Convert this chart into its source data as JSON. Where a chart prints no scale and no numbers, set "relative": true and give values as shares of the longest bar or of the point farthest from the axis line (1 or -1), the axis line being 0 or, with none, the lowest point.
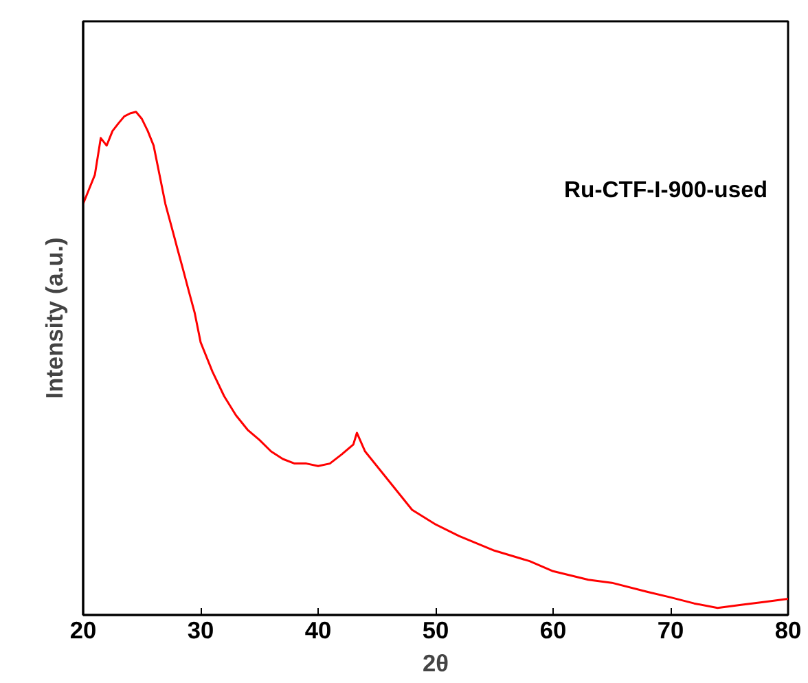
{
  "chart_data": {
    "type": "line",
    "xlabel": "2θ",
    "ylabel": "Intensity (a.u.)",
    "relative": true,
    "xlim": [
      20,
      80
    ],
    "xticks": [
      20,
      30,
      40,
      50,
      60,
      70,
      80
    ],
    "tick_labels": "x",
    "grid": false,
    "legend": false,
    "series": [
      {
        "name": "Ru-CTF-I-900-used",
        "color": "#ff0000",
        "x": [
          20,
          20.5,
          21,
          21.5,
          22,
          22.5,
          23,
          23.5,
          24,
          24.5,
          25,
          25.5,
          26,
          26.5,
          27,
          27.5,
          28,
          28.5,
          29,
          29.5,
          30,
          31,
          32,
          33,
          34,
          35,
          36,
          37,
          38,
          39,
          40,
          41,
          42,
          43,
          43.3,
          44,
          45,
          46,
          47,
          48,
          50,
          52,
          55,
          58,
          60,
          63,
          65,
          68,
          70,
          72,
          74,
          76,
          78,
          80
        ],
        "values": [
          0.817,
          0.846,
          0.875,
          0.948,
          0.933,
          0.962,
          0.977,
          0.991,
          0.997,
          1.0,
          0.986,
          0.962,
          0.933,
          0.875,
          0.817,
          0.774,
          0.73,
          0.687,
          0.643,
          0.6,
          0.542,
          0.484,
          0.435,
          0.397,
          0.368,
          0.348,
          0.325,
          0.31,
          0.301,
          0.301,
          0.296,
          0.301,
          0.319,
          0.339,
          0.362,
          0.325,
          0.296,
          0.267,
          0.238,
          0.209,
          0.18,
          0.157,
          0.128,
          0.107,
          0.087,
          0.07,
          0.064,
          0.046,
          0.035,
          0.023,
          0.014,
          0.02,
          0.026,
          0.032
        ]
      }
    ]
  }
}
